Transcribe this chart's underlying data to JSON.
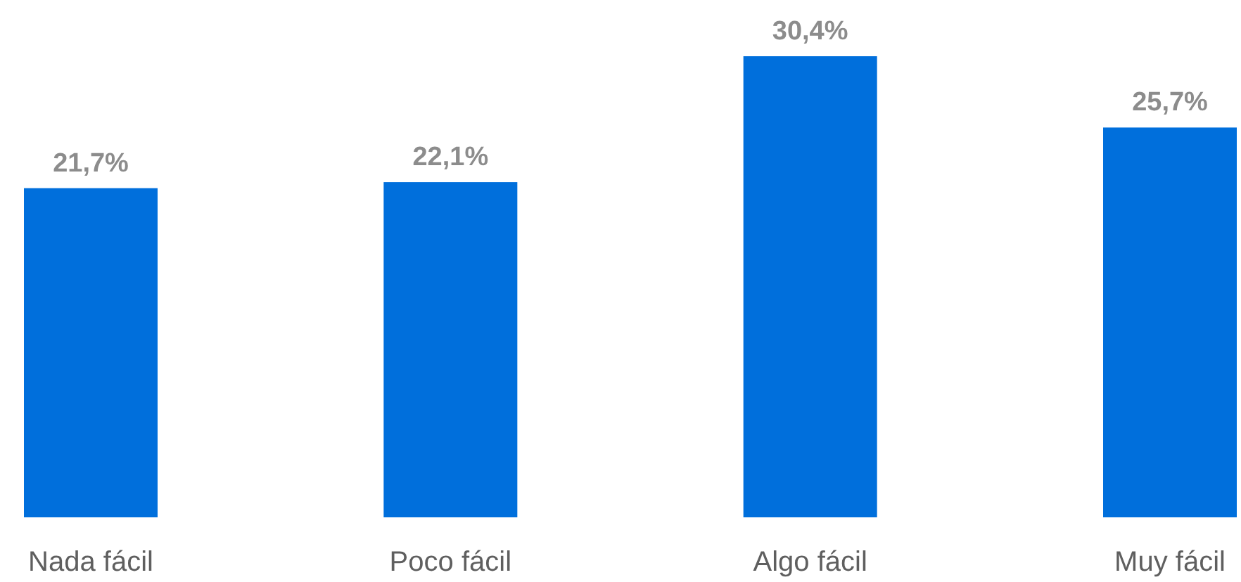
{
  "chart_data": {
    "type": "bar",
    "categories": [
      "Nada fácil",
      "Poco fácil",
      "Algo fácil",
      "Muy fácil"
    ],
    "values": [
      21.7,
      22.1,
      30.4,
      25.7
    ],
    "color": "#006fdc",
    "value_labels": [
      "21,7%",
      "22,1%",
      "30,4%",
      "25,7%"
    ]
  }
}
